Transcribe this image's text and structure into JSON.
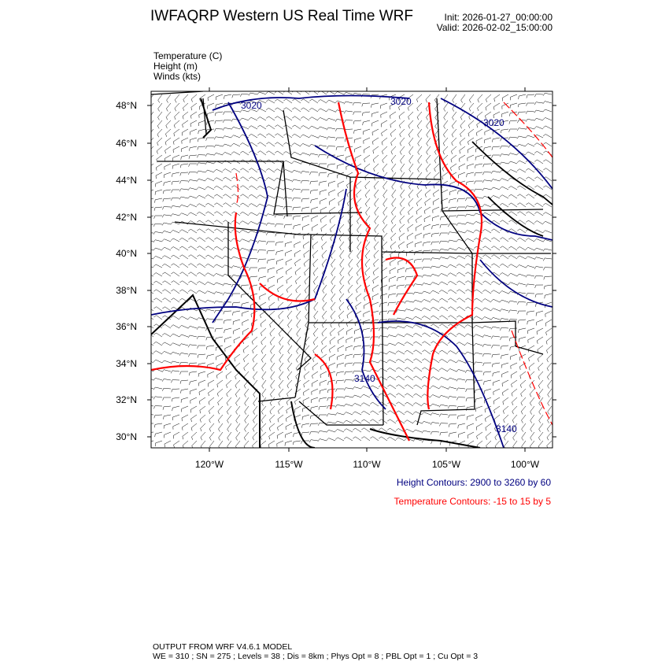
{
  "header": {
    "title": "IWFAQRP Western US Real Time WRF",
    "init": "Init: 2026-01-27_00:00:00",
    "valid": "Valid: 2026-02-02_15:00:00"
  },
  "fields": [
    "Temperature   (C)",
    "Height   (m)",
    "Winds   (kts)"
  ],
  "map": {
    "lat_ticks": [
      "48°N",
      "46°N",
      "44°N",
      "42°N",
      "40°N",
      "38°N",
      "36°N",
      "34°N",
      "32°N",
      "30°N"
    ],
    "lon_ticks": [
      "120°W",
      "115°W",
      "110°W",
      "105°W",
      "100°W"
    ],
    "height_labels": [
      "3020",
      "3020",
      "3020",
      "3140",
      "3140"
    ],
    "colors": {
      "height": "#000080",
      "temperature": "#ff0000",
      "borders": "#000000",
      "barbs": "#000000"
    }
  },
  "legend": {
    "height_contours": "Height Contours: 2900 to 3260 by 60",
    "temperature_contours": "Temperature Contours: -15 to 15 by 5"
  },
  "footer": {
    "line1": "OUTPUT FROM WRF V4.6.1 MODEL",
    "line2": "WE = 310 ; SN = 275 ; Levels = 38 ; Dis = 8km ; Phys Opt = 8 ; PBL Opt = 1 ; Cu Opt = 3"
  }
}
